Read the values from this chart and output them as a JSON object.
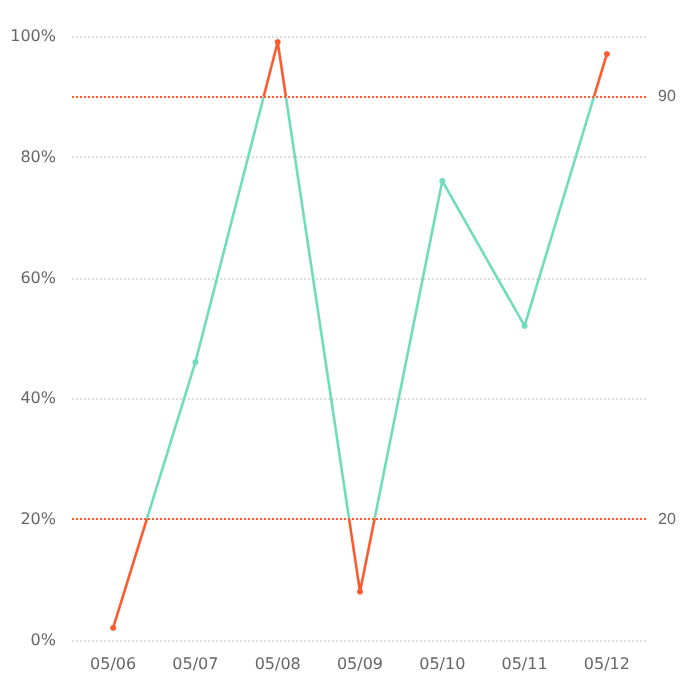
{
  "chart_data": {
    "type": "line",
    "categories": [
      "05/06",
      "05/07",
      "05/08",
      "05/09",
      "05/10",
      "05/11",
      "05/12"
    ],
    "series": [
      {
        "color": "#6fdcbc",
        "values": [
          2,
          46,
          99,
          8,
          76,
          52,
          97
        ]
      }
    ],
    "ylim": [
      0,
      100
    ],
    "yticks": [
      {
        "value": 0,
        "label": "0%"
      },
      {
        "value": 20,
        "label": "20%"
      },
      {
        "value": 40,
        "label": "40%"
      },
      {
        "value": 60,
        "label": "60%"
      },
      {
        "value": 80,
        "label": "80%"
      },
      {
        "value": 100,
        "label": "100%"
      }
    ],
    "grid": "y",
    "marker": "circle",
    "line_style": "solid",
    "ref_lines": [
      {
        "axis": "y",
        "value": 90,
        "label": "90",
        "color": "#ff5a2e",
        "line_style": "dotted"
      },
      {
        "axis": "y",
        "value": 20,
        "label": "20",
        "color": "#ff5a2e",
        "line_style": "dotted"
      }
    ]
  }
}
